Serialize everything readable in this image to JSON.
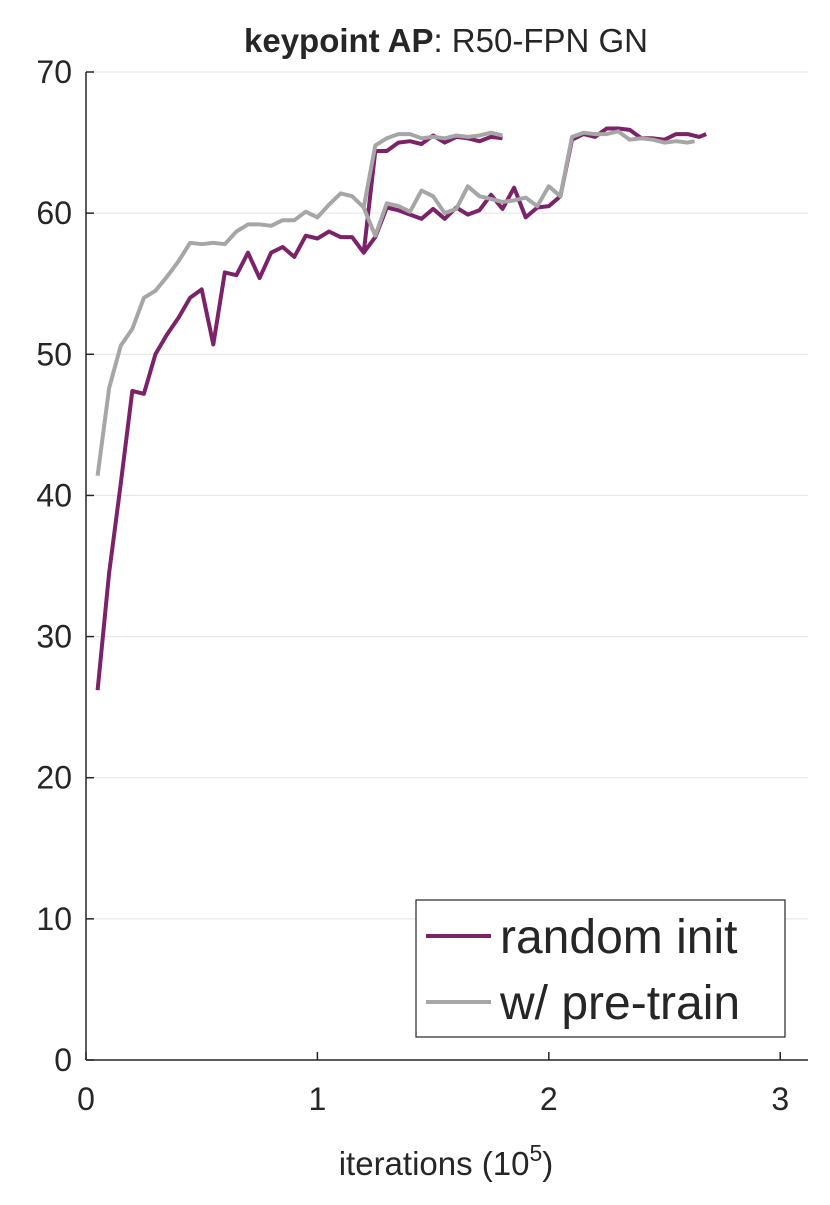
{
  "chart_data": {
    "type": "line",
    "title_bold": "keypoint AP",
    "title_rest": ": R50-FPN GN",
    "xlabel": "iterations (10",
    "xlabel_sup": "5",
    "xlabel_end": ")",
    "xlim": [
      0,
      3.12
    ],
    "xticks": [
      0,
      1,
      2,
      3
    ],
    "ylim": [
      0,
      70
    ],
    "yticks": [
      0,
      10,
      20,
      30,
      40,
      50,
      60,
      70
    ],
    "grid": true,
    "legend": "lower right",
    "series": [
      {
        "name": "random init",
        "color": "#7b2268",
        "x": [
          0.05,
          0.1,
          0.15,
          0.2,
          0.25,
          0.3,
          0.35,
          0.4,
          0.45,
          0.5,
          0.55,
          0.6,
          0.65,
          0.7,
          0.75,
          0.8,
          0.85,
          0.9,
          0.95,
          1.0,
          1.05,
          1.1,
          1.15,
          1.2,
          1.25,
          1.3,
          1.35,
          1.4,
          1.45,
          1.5,
          1.55,
          1.6,
          1.65,
          1.7,
          1.75,
          1.8,
          1.85,
          1.9,
          1.95,
          2.0,
          2.05,
          2.1,
          2.15,
          2.2,
          2.25,
          2.3,
          2.35,
          2.4,
          2.45,
          2.5,
          2.55,
          2.6,
          2.65,
          2.68,
          null,
          1.2,
          1.25,
          1.3,
          1.35,
          1.4,
          1.45,
          1.5,
          1.55,
          1.6,
          1.65,
          1.7,
          1.75,
          1.8
        ],
        "values": [
          26.2,
          34.5,
          40.8,
          47.4,
          47.2,
          50.0,
          51.4,
          52.6,
          54.0,
          54.6,
          50.7,
          55.8,
          55.6,
          57.2,
          55.4,
          57.2,
          57.6,
          56.9,
          58.4,
          58.2,
          58.7,
          58.3,
          58.3,
          57.2,
          58.3,
          60.4,
          60.2,
          59.9,
          59.6,
          60.3,
          59.6,
          60.4,
          59.9,
          60.2,
          61.3,
          60.3,
          61.8,
          59.7,
          60.4,
          60.5,
          61.2,
          65.2,
          65.6,
          65.4,
          66.0,
          66.0,
          65.9,
          65.3,
          65.3,
          65.2,
          65.6,
          65.6,
          65.4,
          65.6,
          null,
          57.2,
          64.4,
          64.4,
          65.0,
          65.1,
          64.9,
          65.5,
          65.0,
          65.4,
          65.3,
          65.1,
          65.4,
          65.3
        ]
      },
      {
        "name": "w/ pre-train",
        "color": "#a6a6a6",
        "x": [
          0.05,
          0.1,
          0.15,
          0.2,
          0.25,
          0.3,
          0.35,
          0.4,
          0.45,
          0.5,
          0.55,
          0.6,
          0.65,
          0.7,
          0.75,
          0.8,
          0.85,
          0.9,
          0.95,
          1.0,
          1.05,
          1.1,
          1.15,
          1.2,
          1.25,
          1.3,
          1.35,
          1.4,
          1.45,
          1.5,
          1.55,
          1.6,
          1.65,
          1.7,
          1.75,
          1.8,
          1.85,
          1.9,
          1.95,
          2.0,
          2.05,
          2.1,
          2.15,
          2.2,
          2.25,
          2.3,
          2.35,
          2.4,
          2.45,
          2.5,
          2.55,
          2.6,
          2.63,
          null,
          1.2,
          1.25,
          1.3,
          1.35,
          1.4,
          1.45,
          1.5,
          1.55,
          1.6,
          1.65,
          1.7,
          1.75,
          1.8
        ],
        "values": [
          41.4,
          47.6,
          50.6,
          51.8,
          54.0,
          54.5,
          55.5,
          56.6,
          57.9,
          57.8,
          57.9,
          57.8,
          58.7,
          59.2,
          59.2,
          59.1,
          59.5,
          59.5,
          60.1,
          59.7,
          60.6,
          61.4,
          61.2,
          60.4,
          58.4,
          60.7,
          60.5,
          60.1,
          61.6,
          61.2,
          60.0,
          60.3,
          61.9,
          61.2,
          61.0,
          60.8,
          60.9,
          61.1,
          60.5,
          61.9,
          61.2,
          65.4,
          65.7,
          65.6,
          65.6,
          65.8,
          65.2,
          65.3,
          65.2,
          65.0,
          65.1,
          65.0,
          65.1,
          null,
          60.4,
          64.8,
          65.3,
          65.6,
          65.6,
          65.3,
          65.4,
          65.3,
          65.5,
          65.4,
          65.5,
          65.7,
          65.5
        ]
      }
    ]
  }
}
